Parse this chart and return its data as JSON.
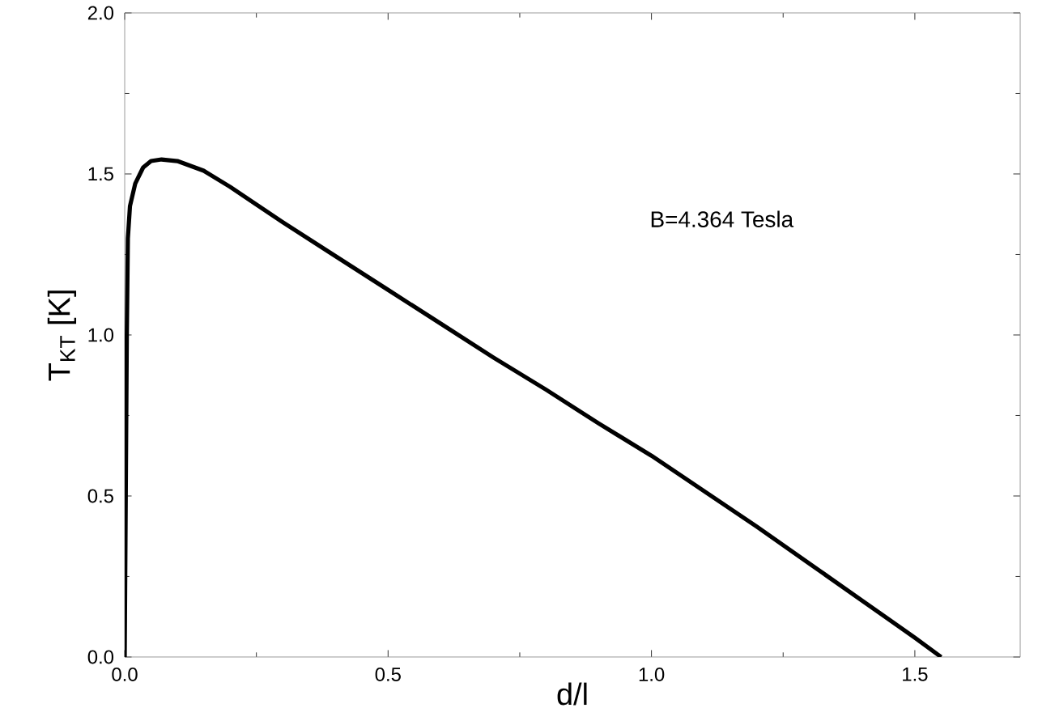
{
  "chart_data": {
    "type": "line",
    "xlabel": "d/l",
    "ylabel": "T$_{KT}$ [K]",
    "annotations": [
      "B=4.364 Tesla"
    ],
    "xlim": [
      0,
      1.7
    ],
    "ylim": [
      0,
      2.0
    ],
    "xticks": [
      {
        "value": 0,
        "label": "0.0"
      },
      0.5,
      {
        "value": 1,
        "label": "1.0"
      },
      1.5
    ],
    "yticks": [
      {
        "value": 0,
        "label": "0.0"
      },
      0.5,
      {
        "value": 1,
        "label": "1.0"
      },
      1.5,
      {
        "value": 2,
        "label": "2.0"
      }
    ],
    "grid": false,
    "marker": "none",
    "line_style": "solid",
    "series": [
      {
        "color": "#000000",
        "x": [
          0,
          0.002,
          0.004,
          0.006,
          0.01,
          0.02,
          0.035,
          0.05,
          0.07,
          0.1,
          0.15,
          0.2,
          0.3,
          0.4,
          0.5,
          0.6,
          0.7,
          0.8,
          0.9,
          1.0,
          1.1,
          1.2,
          1.3,
          1.4,
          1.5,
          1.55
        ],
        "values": [
          0,
          0.5,
          1.0,
          1.3,
          1.4,
          1.47,
          1.52,
          1.54,
          1.545,
          1.54,
          1.51,
          1.46,
          1.35,
          1.245,
          1.14,
          1.035,
          0.93,
          0.83,
          0.725,
          0.625,
          0.515,
          0.405,
          0.29,
          0.175,
          0.06,
          0
        ]
      }
    ]
  }
}
